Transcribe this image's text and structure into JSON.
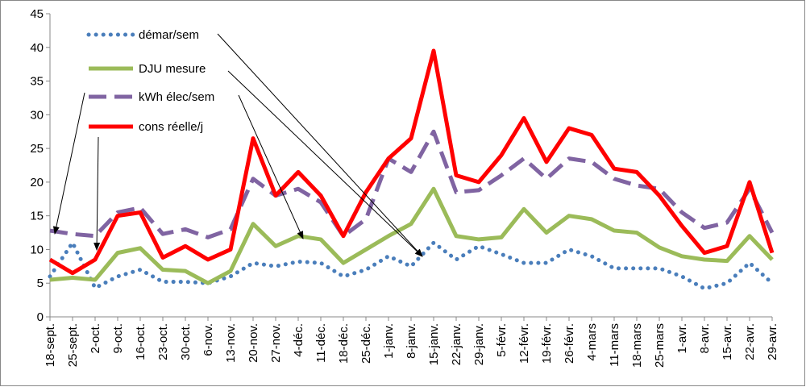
{
  "chart_data": {
    "type": "line",
    "categories": [
      "18-sept.",
      "25-sept.",
      "2-oct.",
      "9-oct.",
      "16-oct.",
      "23-oct.",
      "30-oct.",
      "6-nov.",
      "13-nov.",
      "20-nov.",
      "27-nov.",
      "4-déc.",
      "11-déc.",
      "18-déc.",
      "25-déc.",
      "1-janv.",
      "8-janv.",
      "15-janv.",
      "22-janv.",
      "29-janv.",
      "5-févr.",
      "12-févr.",
      "19-févr.",
      "26-févr.",
      "4-mars",
      "11-mars",
      "18-mars",
      "25-mars",
      "1-avr.",
      "8-avr.",
      "15-avr.",
      "22-avr.",
      "29-avr."
    ],
    "series": [
      {
        "name": "démar/sem",
        "color": "#4a7ebb",
        "dash": "dot",
        "values": [
          6,
          11,
          4.3,
          6,
          7,
          5.2,
          5.2,
          5,
          6,
          8,
          7.5,
          8.2,
          8,
          6,
          7,
          9,
          7.5,
          11,
          8.5,
          10.5,
          9.3,
          8,
          8,
          10,
          9,
          7.2,
          7.2,
          7.2,
          6,
          4.2,
          5,
          8,
          5
        ]
      },
      {
        "name": "DJU mesure",
        "color": "#9bbb59",
        "dash": "solid",
        "values": [
          5.5,
          5.8,
          5.5,
          9.5,
          10.2,
          7,
          6.8,
          5,
          6.8,
          13.8,
          10.5,
          12,
          11.5,
          8,
          10,
          12,
          13.8,
          19,
          12,
          11.5,
          11.8,
          16,
          12.5,
          15,
          14.5,
          12.8,
          12.5,
          10.3,
          9,
          8.5,
          8.3,
          12,
          8.5
        ]
      },
      {
        "name": "kWh élec/sem",
        "color": "#8064a2",
        "dash": "dash",
        "values": [
          12.8,
          12.3,
          12,
          15.5,
          16.2,
          12.3,
          13,
          11.8,
          13,
          20.5,
          18,
          19,
          17,
          12,
          14.5,
          23.5,
          21.5,
          27.5,
          18.5,
          18.8,
          21,
          23.5,
          20.5,
          23.5,
          23,
          20.5,
          19.5,
          19,
          15.5,
          13.2,
          14,
          19,
          12.5
        ]
      },
      {
        "name": "cons réelle/j",
        "color": "#ff0000",
        "dash": "solid",
        "values": [
          8.5,
          6.5,
          8.5,
          15,
          15.5,
          8.8,
          10.5,
          8.5,
          10,
          26.5,
          18,
          21.5,
          18,
          12,
          18.5,
          23.5,
          26.5,
          39.5,
          21,
          20,
          24,
          29.5,
          23,
          28,
          27,
          22,
          21.5,
          18,
          13.5,
          9.5,
          10.5,
          20,
          9.5
        ]
      }
    ],
    "ylim": [
      0,
      45
    ],
    "yticks": [
      0,
      5,
      10,
      15,
      20,
      25,
      30,
      35,
      40,
      45
    ],
    "grid": false
  }
}
